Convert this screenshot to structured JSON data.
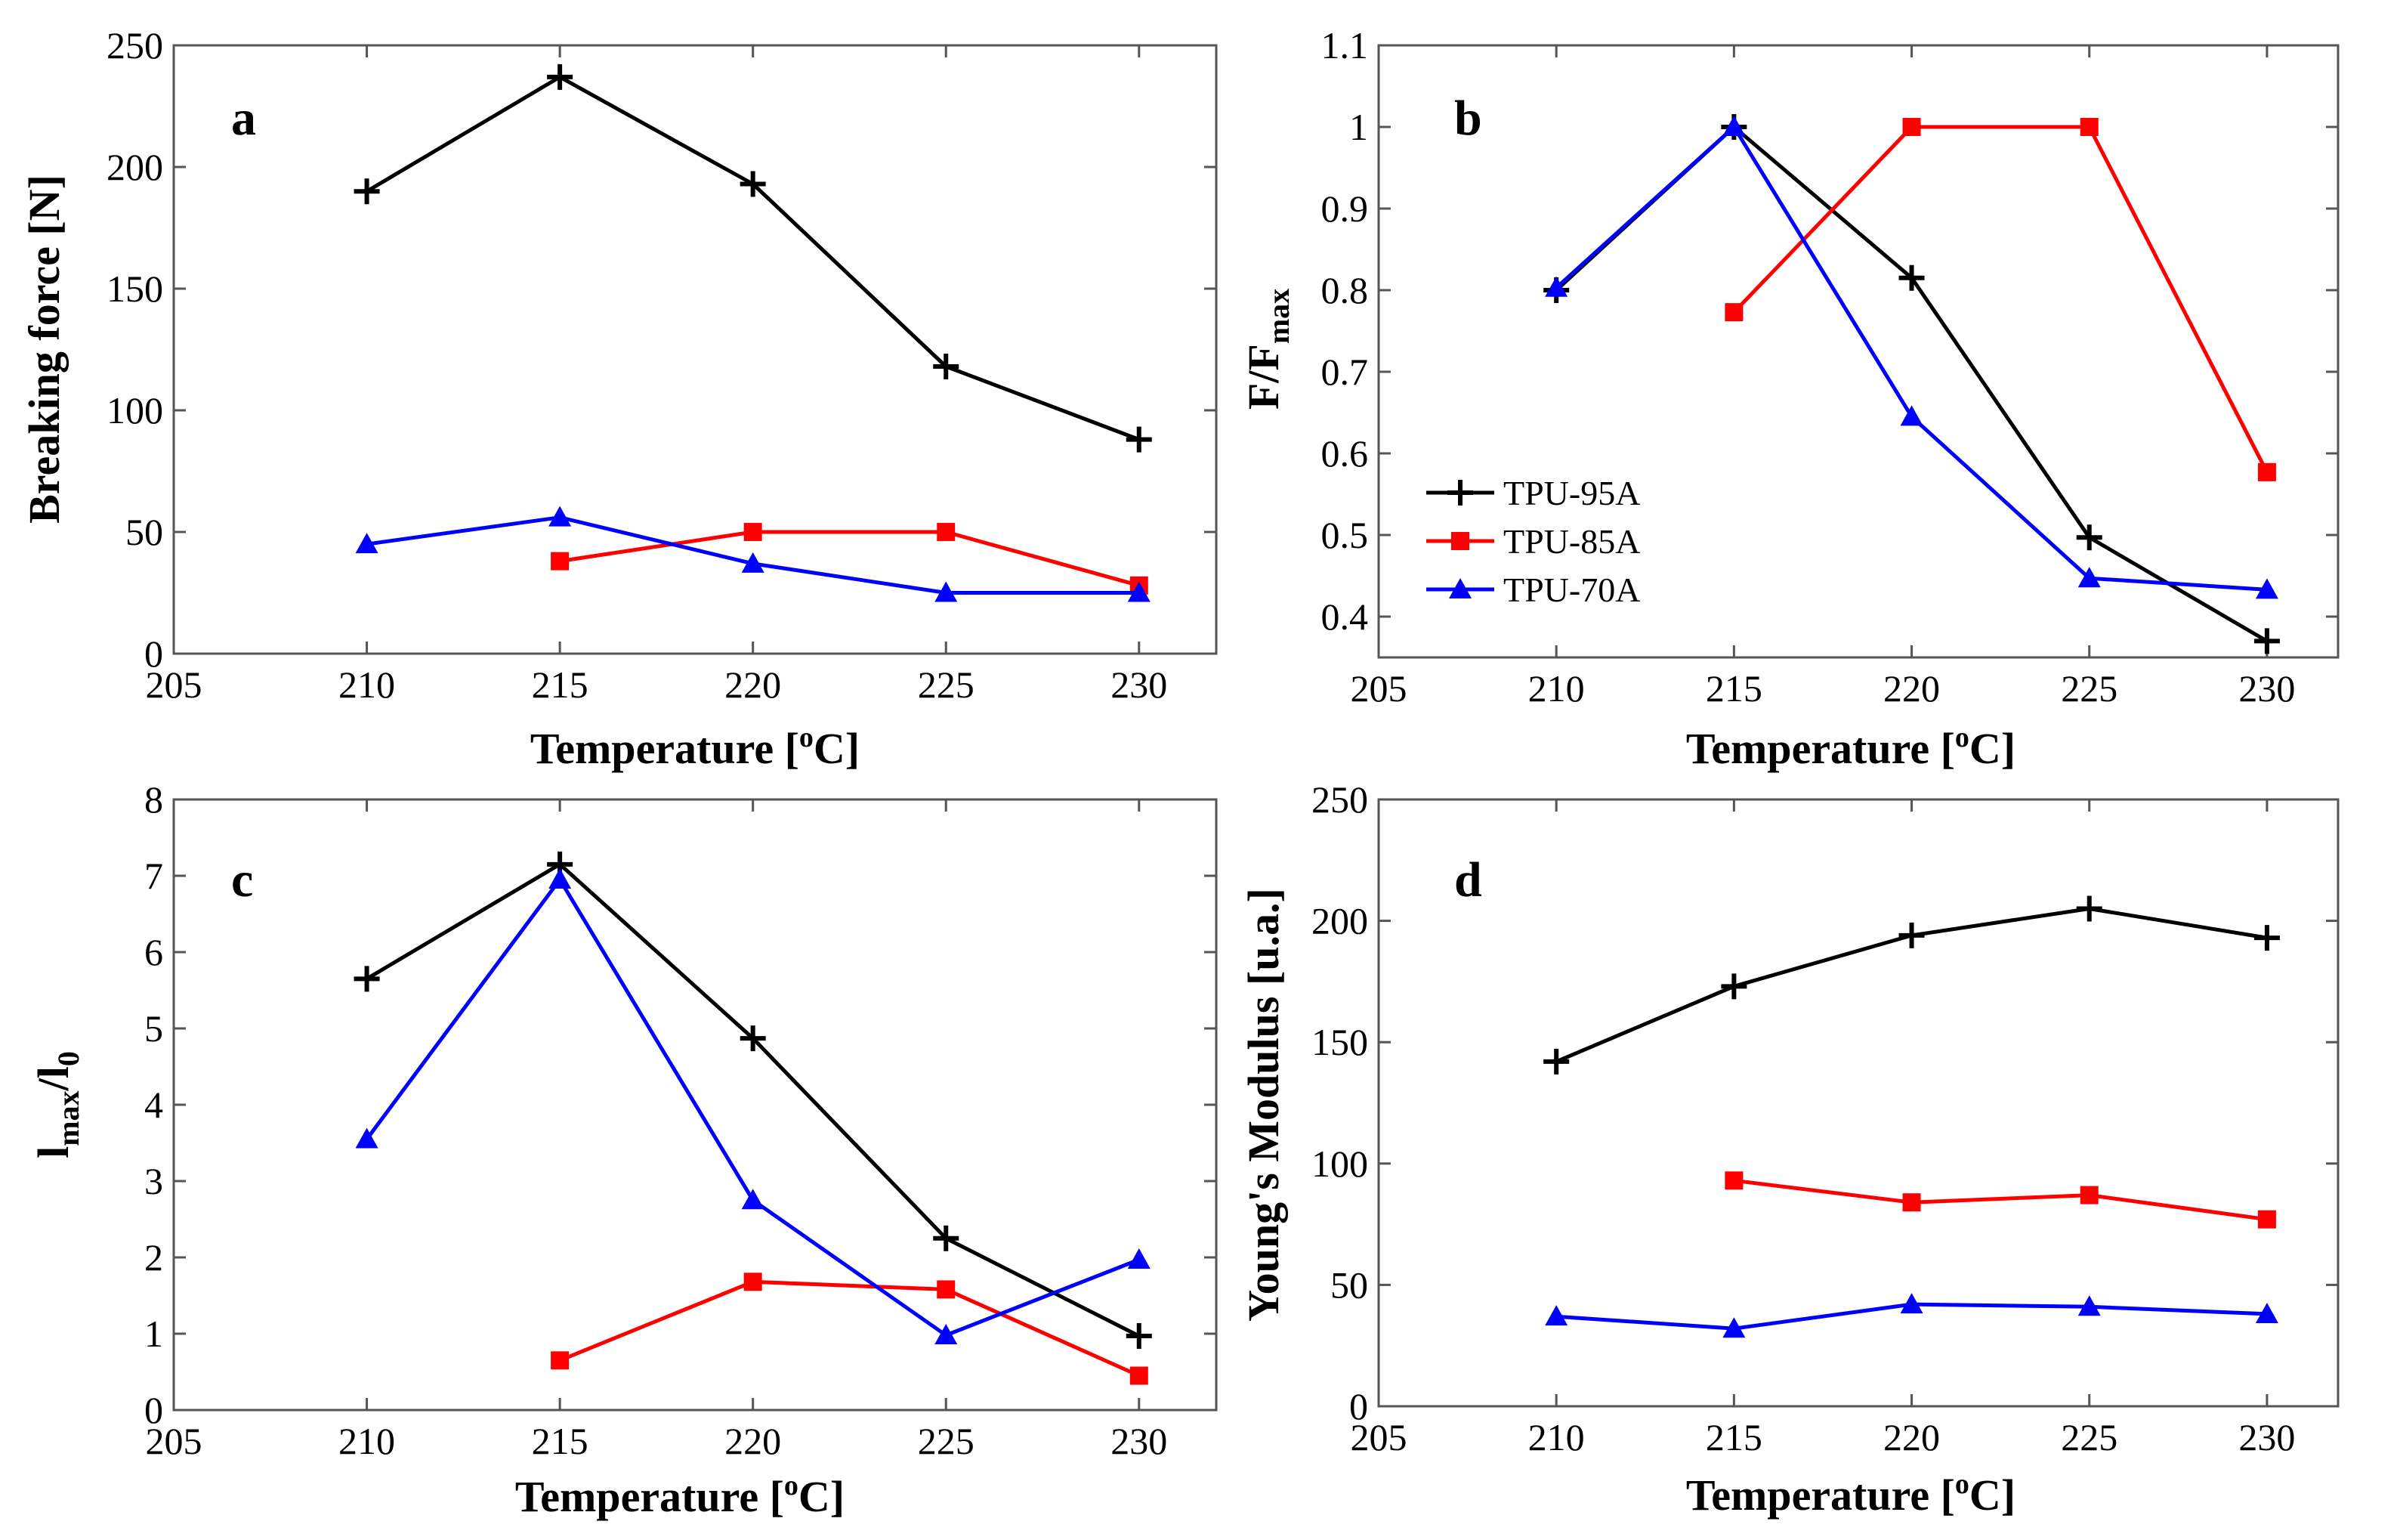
{
  "colors": {
    "TPU-95A": "#000000",
    "TPU-85A": "#ff0000",
    "TPU-70A": "#0000ff"
  },
  "legend": {
    "entries": [
      "TPU-95A",
      "TPU-85A",
      "TPU-70A"
    ]
  },
  "chart_data": [
    {
      "panel": "a",
      "type": "line",
      "title": "",
      "xlabel": "Temperature [oC]",
      "ylabel": "Breaking force [N]",
      "xlim": [
        205,
        232
      ],
      "ylim": [
        0,
        250
      ],
      "xticks": [
        "205",
        "210",
        "215",
        "220",
        "225",
        "230"
      ],
      "yticks": [
        "0",
        "50",
        "100",
        "150",
        "200",
        "250"
      ],
      "series": [
        {
          "name": "TPU-95A",
          "marker": "plus",
          "x": [
            210,
            215,
            220,
            225,
            230
          ],
          "values": [
            190,
            237,
            193,
            118,
            88
          ]
        },
        {
          "name": "TPU-85A",
          "marker": "square",
          "x": [
            215,
            220,
            225,
            230
          ],
          "values": [
            38,
            50,
            50,
            28
          ]
        },
        {
          "name": "TPU-70A",
          "marker": "triangle",
          "x": [
            210,
            215,
            220,
            225,
            230
          ],
          "values": [
            45,
            56,
            37,
            25,
            25
          ]
        }
      ]
    },
    {
      "panel": "b",
      "type": "line",
      "title": "",
      "xlabel": "Temperature [oC]",
      "ylabel": "F/Fmax",
      "xlim": [
        205,
        232
      ],
      "ylim": [
        0.35,
        1.1
      ],
      "xticks": [
        "205",
        "210",
        "215",
        "220",
        "225",
        "230"
      ],
      "yticks": [
        "0.4",
        "0.5",
        "0.6",
        "0.7",
        "0.8",
        "0.9",
        "1",
        "1.1"
      ],
      "legend_position": "lower-left",
      "series": [
        {
          "name": "TPU-95A",
          "marker": "plus",
          "x": [
            210,
            215,
            220,
            225,
            230
          ],
          "values": [
            0.8,
            1.0,
            0.815,
            0.497,
            0.37
          ]
        },
        {
          "name": "TPU-85A",
          "marker": "square",
          "x": [
            215,
            220,
            225,
            230
          ],
          "values": [
            0.773,
            1.0,
            1.0,
            0.577
          ]
        },
        {
          "name": "TPU-70A",
          "marker": "triangle",
          "x": [
            210,
            215,
            220,
            225,
            230
          ],
          "values": [
            0.803,
            1.0,
            0.645,
            0.447,
            0.433
          ]
        }
      ]
    },
    {
      "panel": "c",
      "type": "line",
      "title": "",
      "xlabel": "Temperature [oC]",
      "ylabel": "lmax/l0",
      "xlim": [
        205,
        232
      ],
      "ylim": [
        0,
        8
      ],
      "xticks": [
        "205",
        "210",
        "215",
        "220",
        "225",
        "230"
      ],
      "yticks": [
        "0",
        "1",
        "2",
        "3",
        "4",
        "5",
        "6",
        "7",
        "8"
      ],
      "series": [
        {
          "name": "TPU-95A",
          "marker": "plus",
          "x": [
            210,
            215,
            220,
            225,
            230
          ],
          "values": [
            5.65,
            7.15,
            4.87,
            2.25,
            0.97
          ]
        },
        {
          "name": "TPU-85A",
          "marker": "square",
          "x": [
            215,
            220,
            225,
            230
          ],
          "values": [
            0.65,
            1.68,
            1.58,
            0.45
          ]
        },
        {
          "name": "TPU-70A",
          "marker": "triangle",
          "x": [
            210,
            215,
            220,
            225,
            230
          ],
          "values": [
            3.55,
            6.95,
            2.75,
            0.98,
            1.97
          ]
        }
      ]
    },
    {
      "panel": "d",
      "type": "line",
      "title": "",
      "xlabel": "Temperature [oC]",
      "ylabel": "Young's Modulus [u.a.]",
      "xlim": [
        205,
        232
      ],
      "ylim": [
        0,
        250
      ],
      "xticks": [
        "205",
        "210",
        "215",
        "220",
        "225",
        "230"
      ],
      "yticks": [
        "0",
        "50",
        "100",
        "150",
        "200",
        "250"
      ],
      "series": [
        {
          "name": "TPU-95A",
          "marker": "plus",
          "x": [
            210,
            215,
            220,
            225,
            230
          ],
          "values": [
            142,
            173,
            194,
            205,
            193
          ]
        },
        {
          "name": "TPU-85A",
          "marker": "square",
          "x": [
            215,
            220,
            225,
            230
          ],
          "values": [
            93,
            84,
            87,
            77
          ]
        },
        {
          "name": "TPU-70A",
          "marker": "triangle",
          "x": [
            210,
            215,
            220,
            225,
            230
          ],
          "values": [
            37,
            32,
            42,
            41,
            38
          ]
        }
      ]
    }
  ]
}
